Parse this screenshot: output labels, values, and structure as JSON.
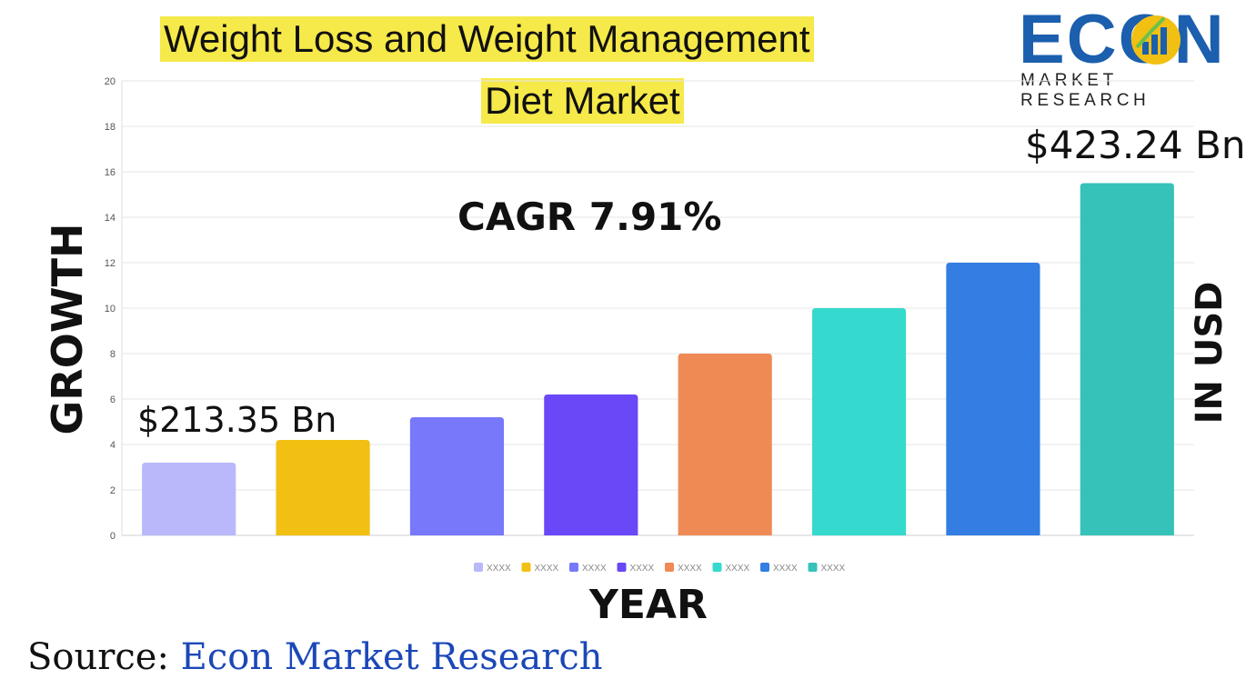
{
  "title": {
    "line1": "Weight Loss and Weight Management",
    "line2": "Diet Market"
  },
  "logo": {
    "word": "ECON",
    "subtitle": "MARKET RESEARCH",
    "icon": "bar-chart-bulb-icon"
  },
  "annotations": {
    "cagr": "CAGR 7.91%",
    "start_value": "$213.35 Bn",
    "end_value": "$423.24 Bn"
  },
  "axis_titles": {
    "y": "GROWTH",
    "y_right": "IN USD",
    "x": "YEAR"
  },
  "source": {
    "label": "Source:",
    "value": "Econ Market Research"
  },
  "chart_data": {
    "type": "bar",
    "categories": [
      "XXXX",
      "XXXX",
      "XXXX",
      "XXXX",
      "XXXX",
      "XXXX",
      "XXXX",
      "XXXX"
    ],
    "values": [
      3.2,
      4.2,
      5.2,
      6.2,
      8,
      10,
      12,
      15.5
    ],
    "colors": [
      "#b8b8fa",
      "#f2c012",
      "#7878fb",
      "#6a47f7",
      "#f08a55",
      "#36d9ce",
      "#337de3",
      "#36c2b9"
    ],
    "yticks": [
      0,
      2,
      4,
      6,
      8,
      10,
      12,
      14,
      16,
      18,
      20
    ],
    "ylim": [
      0,
      20
    ],
    "grid": true,
    "legend": "bottom-center"
  }
}
